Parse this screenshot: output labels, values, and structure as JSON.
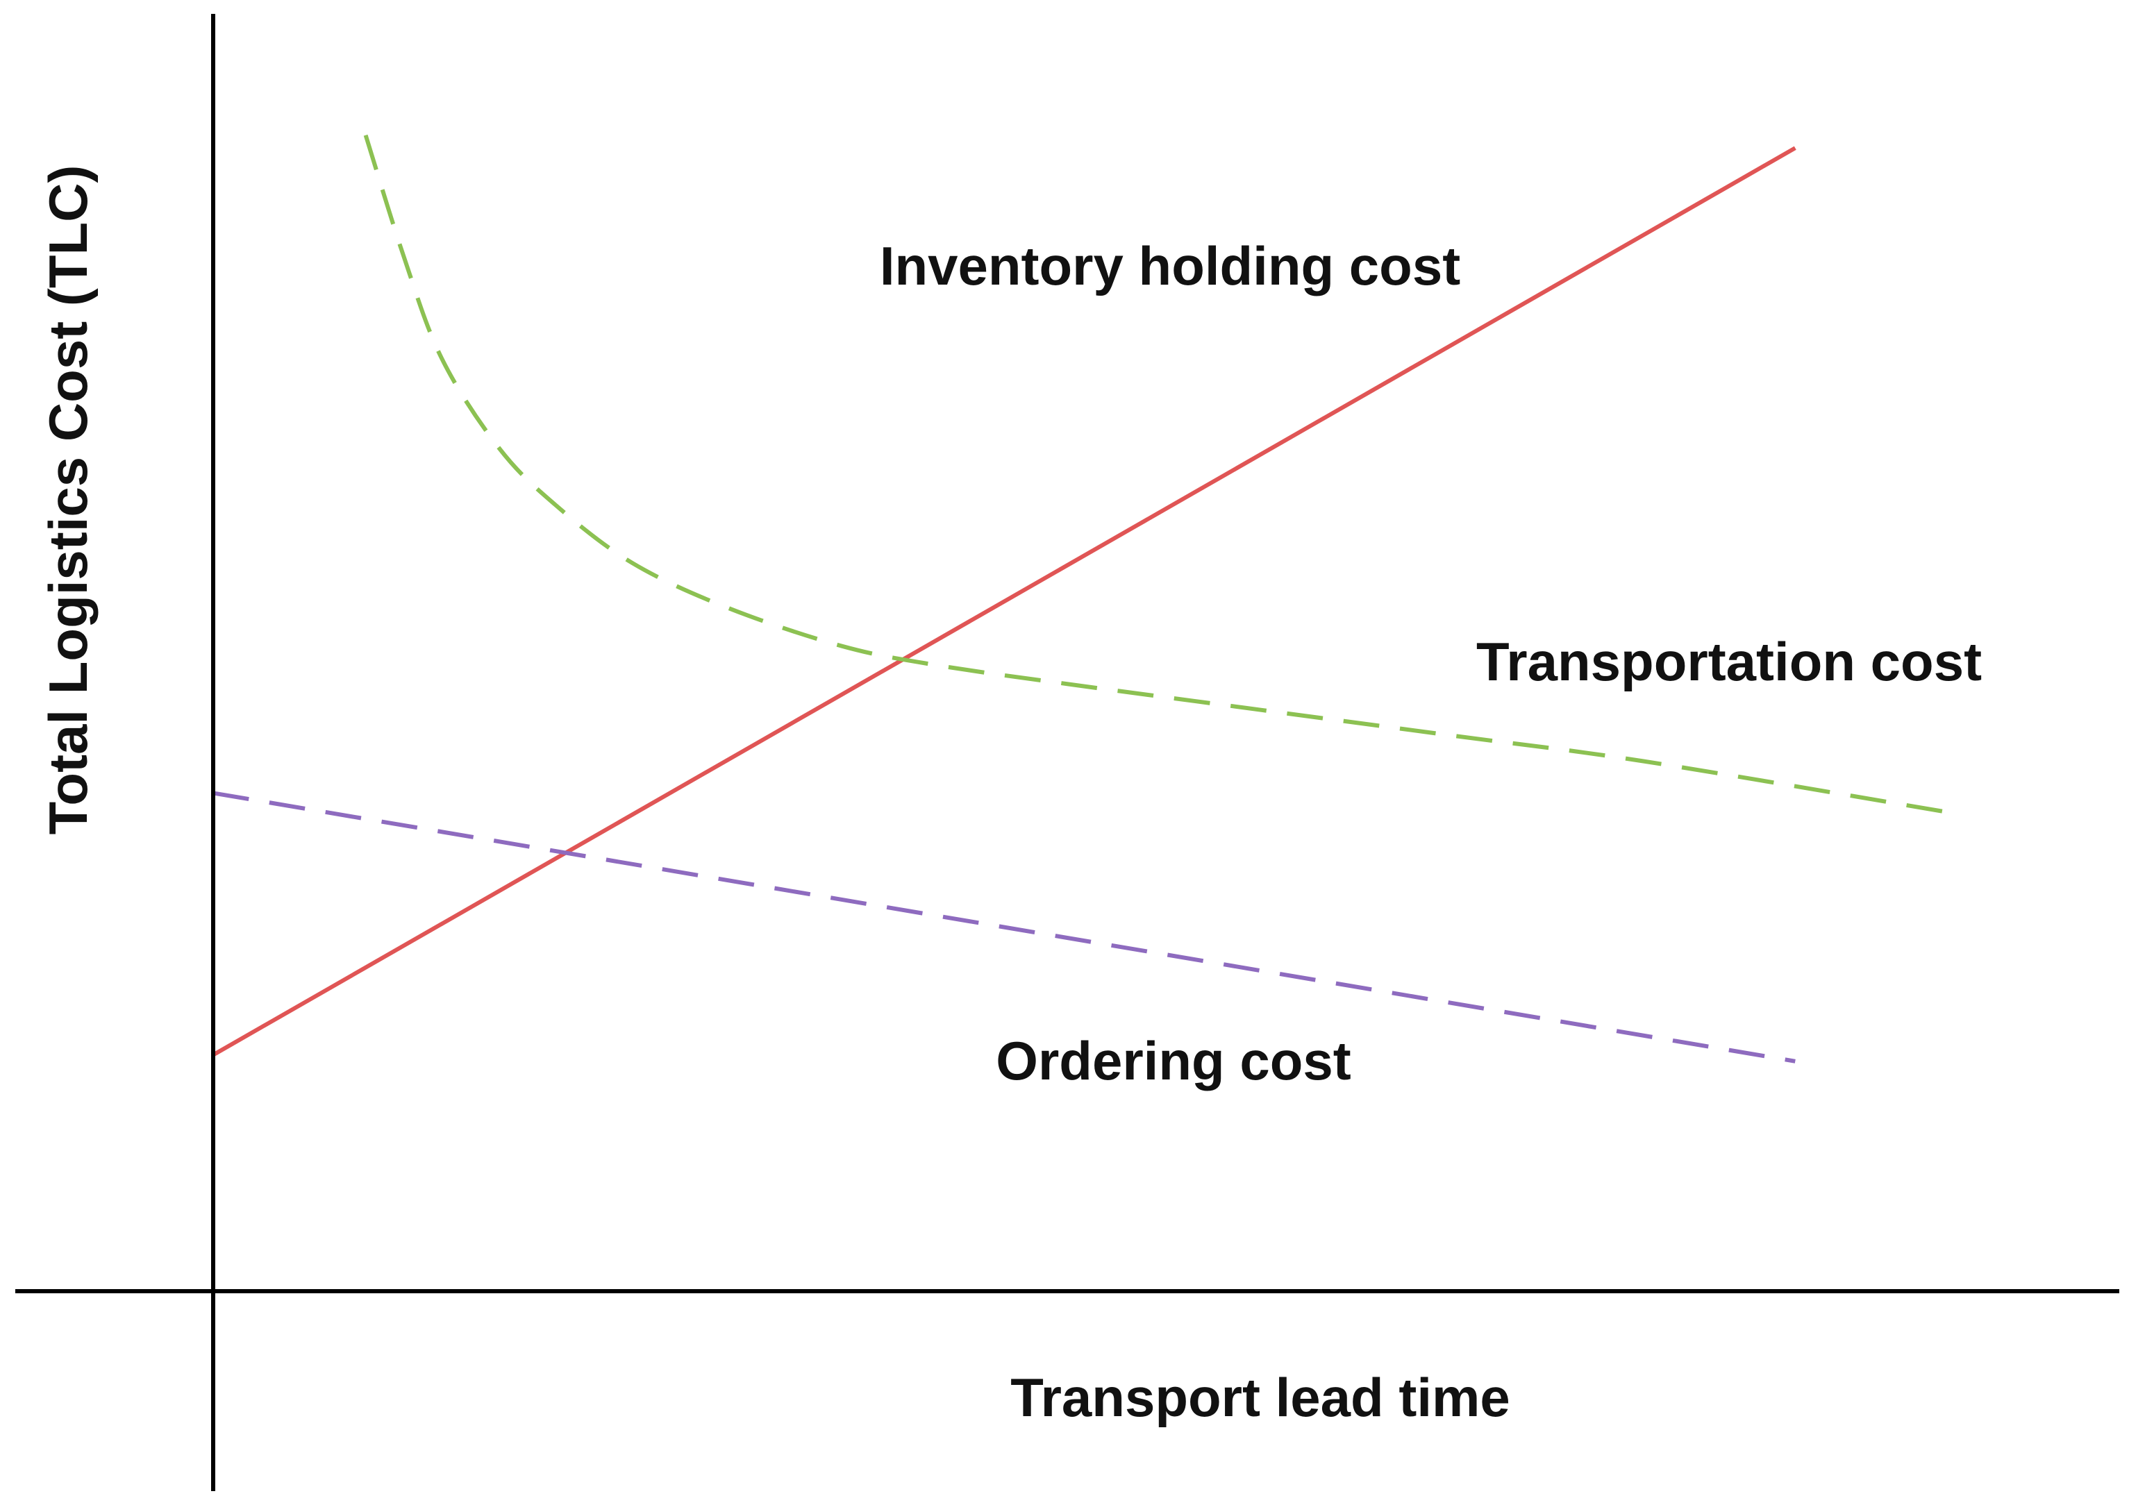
{
  "chart_data": {
    "type": "line",
    "xlabel": "Transport lead time",
    "ylabel": "Total Logistics Cost (TLC)",
    "xlim": [
      0,
      100
    ],
    "ylim": [
      0,
      100
    ],
    "grid": false,
    "legend": "none (curves labeled directly)",
    "series": [
      {
        "name": "Inventory holding cost",
        "color": "#e05555",
        "style": "solid",
        "x": [
          0,
          83
        ],
        "y": [
          18.5,
          89.5
        ]
      },
      {
        "name": "Transportation cost",
        "color": "#8cc152",
        "style": "dashed",
        "x": [
          8,
          10,
          12,
          15,
          18,
          22,
          27,
          33,
          38,
          45,
          55,
          65,
          75,
          91
        ],
        "y": [
          90.5,
          81,
          73,
          66,
          61.5,
          57,
          53.5,
          50.5,
          49,
          47.5,
          45.5,
          43.5,
          41.5,
          37.5
        ]
      },
      {
        "name": "Ordering cost",
        "color": "#8e6bbf",
        "style": "dashed",
        "x": [
          0,
          83
        ],
        "y": [
          39,
          18
        ]
      }
    ]
  }
}
